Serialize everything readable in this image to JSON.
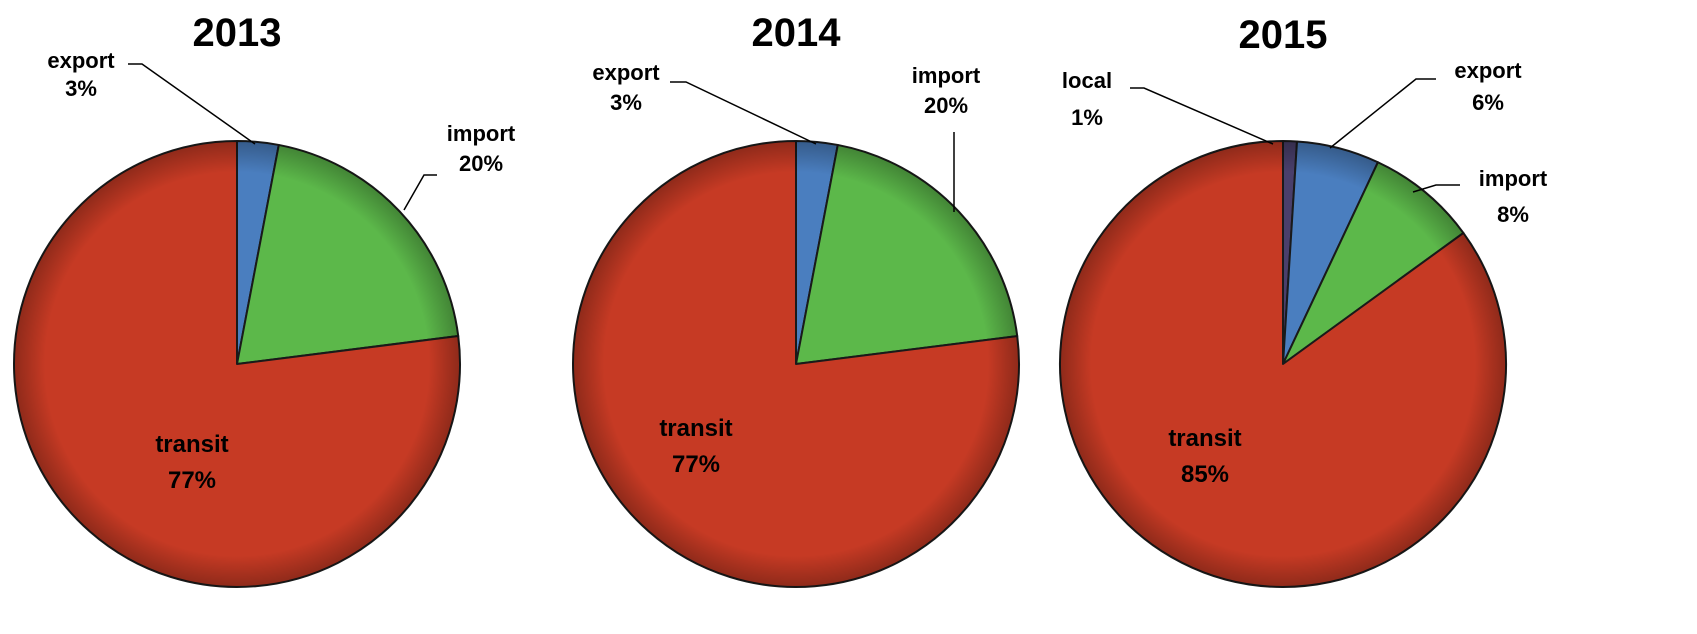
{
  "chart_data": [
    {
      "type": "pie",
      "title": "2013",
      "slices": [
        {
          "label": "export",
          "value": 3,
          "value_text": "3%",
          "color": "#4a7ebf"
        },
        {
          "label": "import",
          "value": 20,
          "value_text": "20%",
          "color": "#5cb84a"
        },
        {
          "label": "transit",
          "value": 77,
          "value_text": "77%",
          "color": "#c63a24"
        }
      ]
    },
    {
      "type": "pie",
      "title": "2014",
      "slices": [
        {
          "label": "export",
          "value": 3,
          "value_text": "3%",
          "color": "#4a7ebf"
        },
        {
          "label": "import",
          "value": 20,
          "value_text": "20%",
          "color": "#5cb84a"
        },
        {
          "label": "transit",
          "value": 77,
          "value_text": "77%",
          "color": "#c63a24"
        }
      ]
    },
    {
      "type": "pie",
      "title": "2015",
      "slices": [
        {
          "label": "local",
          "value": 1,
          "value_text": "1%",
          "color": "#4a3f6b"
        },
        {
          "label": "export",
          "value": 6,
          "value_text": "6%",
          "color": "#4a7ebf"
        },
        {
          "label": "import",
          "value": 8,
          "value_text": "8%",
          "color": "#5cb84a"
        },
        {
          "label": "transit",
          "value": 85,
          "value_text": "85%",
          "color": "#c63a24"
        }
      ]
    }
  ]
}
